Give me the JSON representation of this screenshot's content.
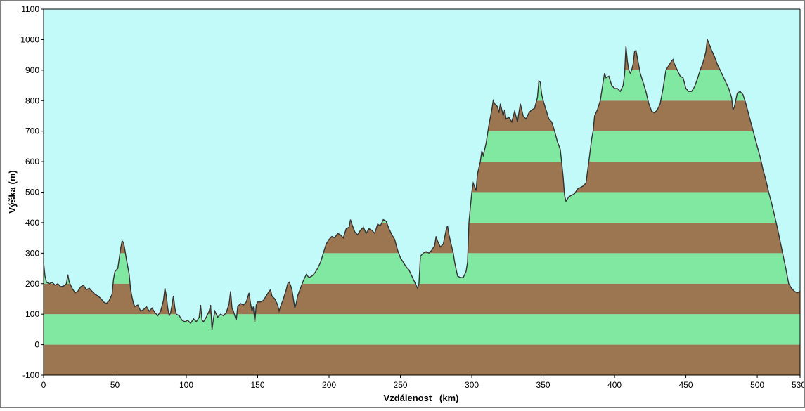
{
  "chart_data": {
    "type": "area",
    "title": "",
    "xlabel": "Vzdálenost   (km)",
    "ylabel": "Výška (m)",
    "xlim": [
      0,
      530
    ],
    "ylim": [
      -100,
      1100
    ],
    "x_ticks": [
      "0",
      "50",
      "100",
      "150",
      "200",
      "250",
      "300",
      "350",
      "400",
      "450",
      "500",
      "530"
    ],
    "y_ticks": [
      "-100",
      "0",
      "100",
      "200",
      "300",
      "400",
      "500",
      "600",
      "700",
      "800",
      "900",
      "1000",
      "1100"
    ],
    "band_size": 100,
    "colors": {
      "sky": "#c2fafa",
      "band_brown": "#9c7650",
      "band_green": "#80e8a0",
      "line": "#333333",
      "axis": "#000000"
    },
    "grid": false,
    "legend": "none",
    "profile": [
      [
        0,
        270
      ],
      [
        1,
        225
      ],
      [
        2,
        205
      ],
      [
        4,
        200
      ],
      [
        6,
        205
      ],
      [
        8,
        195
      ],
      [
        10,
        200
      ],
      [
        12,
        190
      ],
      [
        14,
        192
      ],
      [
        16,
        200
      ],
      [
        17,
        230
      ],
      [
        18,
        205
      ],
      [
        20,
        185
      ],
      [
        22,
        170
      ],
      [
        24,
        175
      ],
      [
        26,
        190
      ],
      [
        28,
        195
      ],
      [
        30,
        180
      ],
      [
        32,
        185
      ],
      [
        34,
        175
      ],
      [
        36,
        165
      ],
      [
        38,
        160
      ],
      [
        40,
        152
      ],
      [
        42,
        140
      ],
      [
        44,
        135
      ],
      [
        46,
        145
      ],
      [
        48,
        165
      ],
      [
        49,
        215
      ],
      [
        50,
        240
      ],
      [
        52,
        250
      ],
      [
        54,
        315
      ],
      [
        55,
        340
      ],
      [
        56,
        335
      ],
      [
        57,
        310
      ],
      [
        58,
        280
      ],
      [
        60,
        230
      ],
      [
        61,
        180
      ],
      [
        62,
        155
      ],
      [
        63,
        135
      ],
      [
        64,
        125
      ],
      [
        66,
        130
      ],
      [
        68,
        110
      ],
      [
        70,
        115
      ],
      [
        72,
        125
      ],
      [
        74,
        110
      ],
      [
        76,
        120
      ],
      [
        78,
        105
      ],
      [
        80,
        95
      ],
      [
        82,
        110
      ],
      [
        84,
        145
      ],
      [
        85,
        185
      ],
      [
        86,
        160
      ],
      [
        87,
        120
      ],
      [
        88,
        95
      ],
      [
        89,
        105
      ],
      [
        90,
        130
      ],
      [
        91,
        160
      ],
      [
        92,
        120
      ],
      [
        93,
        100
      ],
      [
        95,
        95
      ],
      [
        97,
        80
      ],
      [
        99,
        75
      ],
      [
        101,
        80
      ],
      [
        103,
        70
      ],
      [
        105,
        85
      ],
      [
        107,
        75
      ],
      [
        109,
        90
      ],
      [
        110,
        130
      ],
      [
        111,
        80
      ],
      [
        112,
        75
      ],
      [
        114,
        90
      ],
      [
        116,
        110
      ],
      [
        117,
        130
      ],
      [
        118,
        50
      ],
      [
        119,
        85
      ],
      [
        120,
        110
      ],
      [
        122,
        90
      ],
      [
        124,
        100
      ],
      [
        126,
        95
      ],
      [
        128,
        105
      ],
      [
        130,
        135
      ],
      [
        131,
        175
      ],
      [
        132,
        120
      ],
      [
        133,
        110
      ],
      [
        135,
        80
      ],
      [
        136,
        125
      ],
      [
        138,
        135
      ],
      [
        140,
        130
      ],
      [
        142,
        140
      ],
      [
        144,
        170
      ],
      [
        145,
        135
      ],
      [
        146,
        110
      ],
      [
        147,
        125
      ],
      [
        148,
        75
      ],
      [
        149,
        130
      ],
      [
        150,
        140
      ],
      [
        152,
        140
      ],
      [
        154,
        145
      ],
      [
        156,
        160
      ],
      [
        158,
        175
      ],
      [
        159,
        180
      ],
      [
        160,
        160
      ],
      [
        162,
        150
      ],
      [
        164,
        130
      ],
      [
        165,
        110
      ],
      [
        166,
        125
      ],
      [
        168,
        150
      ],
      [
        170,
        180
      ],
      [
        171,
        200
      ],
      [
        172,
        205
      ],
      [
        173,
        195
      ],
      [
        174,
        180
      ],
      [
        175,
        150
      ],
      [
        176,
        120
      ],
      [
        177,
        135
      ],
      [
        178,
        160
      ],
      [
        180,
        185
      ],
      [
        182,
        210
      ],
      [
        184,
        230
      ],
      [
        186,
        220
      ],
      [
        188,
        225
      ],
      [
        190,
        235
      ],
      [
        192,
        250
      ],
      [
        194,
        270
      ],
      [
        196,
        300
      ],
      [
        198,
        330
      ],
      [
        200,
        345
      ],
      [
        202,
        355
      ],
      [
        204,
        350
      ],
      [
        206,
        365
      ],
      [
        208,
        360
      ],
      [
        210,
        350
      ],
      [
        212,
        380
      ],
      [
        214,
        385
      ],
      [
        215,
        410
      ],
      [
        216,
        395
      ],
      [
        218,
        370
      ],
      [
        220,
        360
      ],
      [
        222,
        375
      ],
      [
        224,
        385
      ],
      [
        226,
        365
      ],
      [
        228,
        380
      ],
      [
        230,
        375
      ],
      [
        232,
        365
      ],
      [
        234,
        395
      ],
      [
        236,
        390
      ],
      [
        238,
        410
      ],
      [
        240,
        405
      ],
      [
        242,
        380
      ],
      [
        244,
        360
      ],
      [
        246,
        345
      ],
      [
        248,
        310
      ],
      [
        250,
        285
      ],
      [
        252,
        270
      ],
      [
        254,
        255
      ],
      [
        256,
        245
      ],
      [
        258,
        225
      ],
      [
        260,
        205
      ],
      [
        262,
        185
      ],
      [
        263,
        200
      ],
      [
        264,
        290
      ],
      [
        266,
        300
      ],
      [
        268,
        305
      ],
      [
        270,
        300
      ],
      [
        272,
        310
      ],
      [
        274,
        325
      ],
      [
        275,
        355
      ],
      [
        276,
        340
      ],
      [
        278,
        320
      ],
      [
        280,
        330
      ],
      [
        282,
        375
      ],
      [
        283,
        390
      ],
      [
        284,
        360
      ],
      [
        286,
        320
      ],
      [
        287,
        300
      ],
      [
        288,
        270
      ],
      [
        290,
        225
      ],
      [
        292,
        220
      ],
      [
        294,
        220
      ],
      [
        296,
        240
      ],
      [
        297,
        270
      ],
      [
        298,
        400
      ],
      [
        299,
        450
      ],
      [
        300,
        500
      ],
      [
        301,
        530
      ],
      [
        303,
        505
      ],
      [
        304,
        560
      ],
      [
        306,
        600
      ],
      [
        307,
        635
      ],
      [
        308,
        620
      ],
      [
        310,
        660
      ],
      [
        312,
        720
      ],
      [
        314,
        770
      ],
      [
        315,
        800
      ],
      [
        316,
        790
      ],
      [
        318,
        780
      ],
      [
        319,
        760
      ],
      [
        320,
        790
      ],
      [
        322,
        750
      ],
      [
        323,
        770
      ],
      [
        324,
        740
      ],
      [
        326,
        745
      ],
      [
        328,
        730
      ],
      [
        330,
        765
      ],
      [
        332,
        730
      ],
      [
        334,
        790
      ],
      [
        336,
        750
      ],
      [
        338,
        740
      ],
      [
        340,
        760
      ],
      [
        342,
        770
      ],
      [
        344,
        775
      ],
      [
        346,
        810
      ],
      [
        347,
        865
      ],
      [
        348,
        860
      ],
      [
        349,
        820
      ],
      [
        350,
        800
      ],
      [
        352,
        770
      ],
      [
        354,
        740
      ],
      [
        356,
        730
      ],
      [
        358,
        700
      ],
      [
        360,
        665
      ],
      [
        362,
        640
      ],
      [
        364,
        550
      ],
      [
        365,
        490
      ],
      [
        366,
        470
      ],
      [
        368,
        485
      ],
      [
        370,
        490
      ],
      [
        372,
        495
      ],
      [
        374,
        510
      ],
      [
        376,
        515
      ],
      [
        378,
        520
      ],
      [
        380,
        530
      ],
      [
        382,
        600
      ],
      [
        384,
        675
      ],
      [
        385,
        700
      ],
      [
        386,
        750
      ],
      [
        388,
        770
      ],
      [
        390,
        800
      ],
      [
        392,
        860
      ],
      [
        393,
        890
      ],
      [
        394,
        875
      ],
      [
        396,
        880
      ],
      [
        398,
        850
      ],
      [
        400,
        840
      ],
      [
        402,
        840
      ],
      [
        404,
        830
      ],
      [
        406,
        850
      ],
      [
        407,
        885
      ],
      [
        408,
        980
      ],
      [
        409,
        930
      ],
      [
        410,
        900
      ],
      [
        411,
        890
      ],
      [
        412,
        900
      ],
      [
        413,
        920
      ],
      [
        414,
        960
      ],
      [
        415,
        965
      ],
      [
        416,
        940
      ],
      [
        418,
        890
      ],
      [
        420,
        860
      ],
      [
        422,
        830
      ],
      [
        424,
        790
      ],
      [
        426,
        765
      ],
      [
        428,
        760
      ],
      [
        430,
        770
      ],
      [
        432,
        790
      ],
      [
        434,
        840
      ],
      [
        436,
        900
      ],
      [
        438,
        915
      ],
      [
        440,
        930
      ],
      [
        441,
        935
      ],
      [
        442,
        920
      ],
      [
        444,
        900
      ],
      [
        446,
        880
      ],
      [
        448,
        875
      ],
      [
        450,
        840
      ],
      [
        452,
        830
      ],
      [
        454,
        830
      ],
      [
        456,
        845
      ],
      [
        458,
        870
      ],
      [
        460,
        900
      ],
      [
        462,
        925
      ],
      [
        464,
        960
      ],
      [
        465,
        1000
      ],
      [
        466,
        990
      ],
      [
        468,
        965
      ],
      [
        470,
        945
      ],
      [
        472,
        920
      ],
      [
        474,
        900
      ],
      [
        476,
        880
      ],
      [
        478,
        860
      ],
      [
        480,
        840
      ],
      [
        482,
        810
      ],
      [
        483,
        770
      ],
      [
        484,
        780
      ],
      [
        486,
        825
      ],
      [
        488,
        830
      ],
      [
        490,
        820
      ],
      [
        492,
        790
      ],
      [
        494,
        755
      ],
      [
        496,
        720
      ],
      [
        498,
        685
      ],
      [
        500,
        650
      ],
      [
        502,
        615
      ],
      [
        504,
        575
      ],
      [
        506,
        540
      ],
      [
        508,
        500
      ],
      [
        510,
        465
      ],
      [
        512,
        425
      ],
      [
        514,
        385
      ],
      [
        516,
        340
      ],
      [
        518,
        295
      ],
      [
        520,
        250
      ],
      [
        522,
        200
      ],
      [
        524,
        185
      ],
      [
        526,
        175
      ],
      [
        528,
        170
      ],
      [
        530,
        175
      ]
    ]
  }
}
